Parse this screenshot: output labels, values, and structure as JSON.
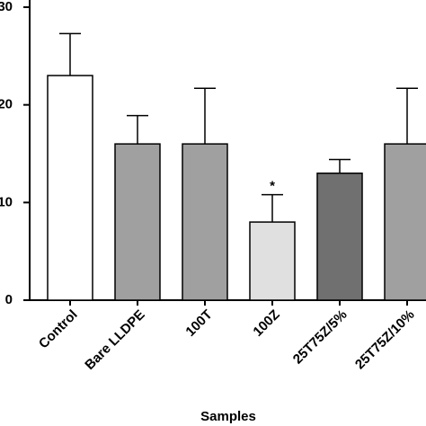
{
  "chart_data": {
    "type": "bar",
    "x_label": "Samples",
    "categories": [
      "Control",
      "Bare LLDPE",
      "100T",
      "100Z",
      "25T75Z/5%",
      "25T75Z/10%"
    ],
    "values": [
      23,
      16,
      16,
      8,
      13,
      16
    ],
    "errors": [
      4.3,
      2.9,
      5.7,
      2.8,
      1.4,
      5.7
    ],
    "colors": [
      "#ffffff",
      "#a0a0a0",
      "#a0a0a0",
      "#e0e0e0",
      "#707070",
      "#a0a0a0"
    ],
    "annotations": [
      {
        "category": 3,
        "text": "*"
      }
    ],
    "ylim": [
      0,
      30
    ],
    "yticks": [
      0,
      10,
      20,
      30
    ],
    "grid": false
  }
}
